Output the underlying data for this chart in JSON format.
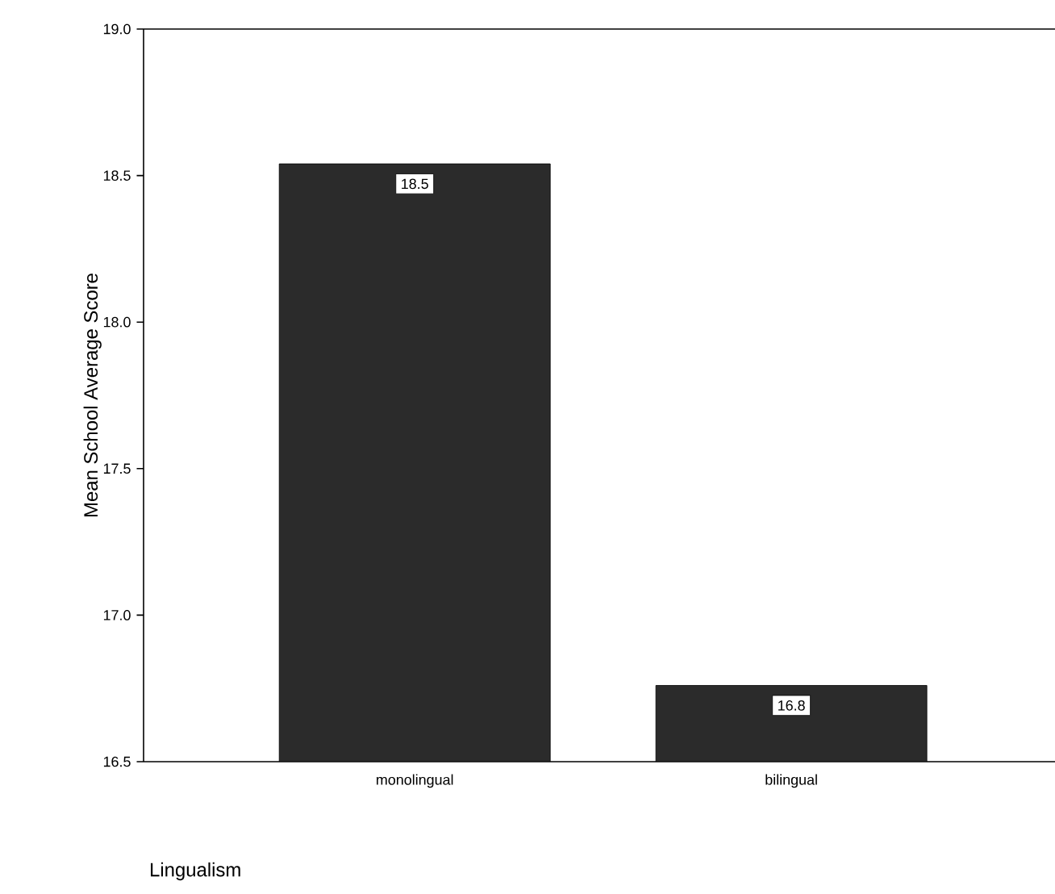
{
  "chart_data": {
    "type": "bar",
    "xlabel": "Lingualism",
    "ylabel": "Mean School Average Score",
    "categories": [
      "monolingual",
      "bilingual"
    ],
    "values": [
      18.54,
      16.76
    ],
    "value_labels": [
      "18.5",
      "16.8"
    ],
    "color": "#2b2b2b",
    "ylim": [
      16.5,
      19.0
    ],
    "yticks": [
      {
        "value": 16.5,
        "label": "16.5"
      },
      {
        "value": 17.0,
        "label": "17.0"
      },
      {
        "value": 17.5,
        "label": "17.5"
      },
      {
        "value": 18.0,
        "label": "18.0"
      },
      {
        "value": 18.5,
        "label": "18.5"
      },
      {
        "value": 19.0,
        "label": "19.0"
      }
    ],
    "grid": false
  }
}
